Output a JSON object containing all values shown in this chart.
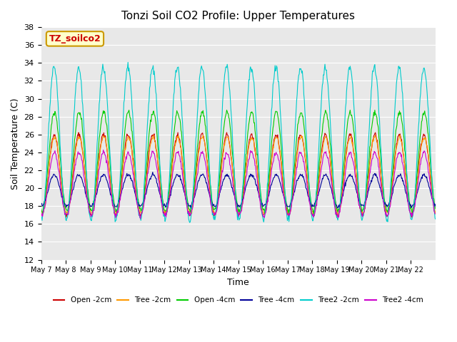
{
  "title": "Tonzi Soil CO2 Profile: Upper Temperatures",
  "xlabel": "Time",
  "ylabel": "Soil Temperature (C)",
  "ylim": [
    12,
    38
  ],
  "yticks": [
    12,
    14,
    16,
    18,
    20,
    22,
    24,
    26,
    28,
    30,
    32,
    34,
    36,
    38
  ],
  "bg_color": "#e8e8e8",
  "legend_label": "TZ_soilco2",
  "legend_text_color": "#cc0000",
  "legend_box_color": "#ffffcc",
  "series": [
    {
      "label": "Open -2cm",
      "color": "#cc0000"
    },
    {
      "label": "Tree -2cm",
      "color": "#ff9900"
    },
    {
      "label": "Open -4cm",
      "color": "#00cc00"
    },
    {
      "label": "Tree -4cm",
      "color": "#000099"
    },
    {
      "label": "Tree2 -2cm",
      "color": "#00cccc"
    },
    {
      "label": "Tree2 -4cm",
      "color": "#cc00cc"
    }
  ],
  "n_days": 16,
  "points_per_day": 48,
  "start_day": 7,
  "series_params": [
    {
      "base": 17.0,
      "amp": 9.0,
      "noise": 0.15,
      "phase": 0.1,
      "label": "Open -2cm"
    },
    {
      "base": 17.2,
      "amp": 8.5,
      "noise": 0.15,
      "phase": 0.05,
      "label": "Tree -2cm"
    },
    {
      "base": 17.5,
      "amp": 11.0,
      "noise": 0.15,
      "phase": 0.05,
      "label": "Open -4cm"
    },
    {
      "base": 18.0,
      "amp": 3.5,
      "noise": 0.1,
      "phase": 0.1,
      "label": "Tree -4cm"
    },
    {
      "base": 16.5,
      "amp": 17.0,
      "noise": 0.2,
      "phase": 0.15,
      "label": "Tree2 -2cm"
    },
    {
      "base": 17.0,
      "amp": 7.0,
      "noise": 0.15,
      "phase": 0.1,
      "label": "Tree2 -4cm"
    }
  ]
}
